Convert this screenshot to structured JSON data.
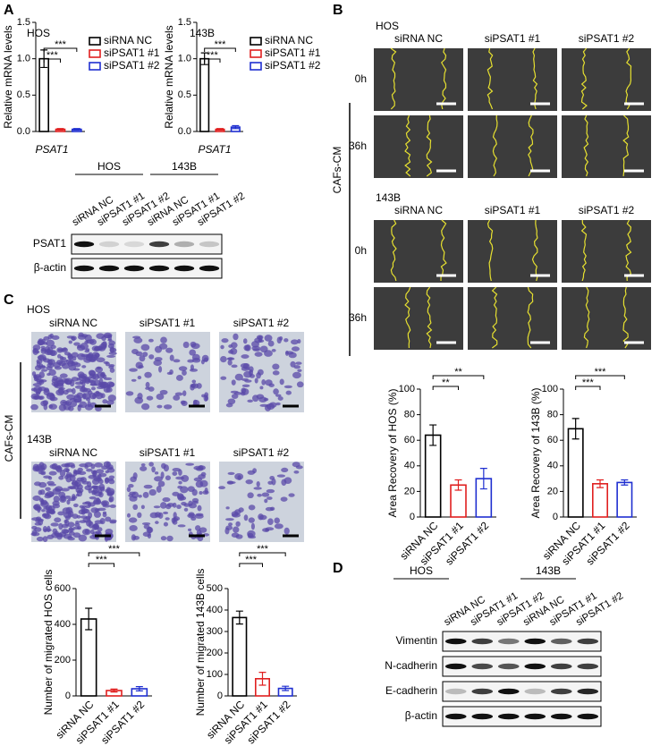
{
  "panels": [
    "A",
    "B",
    "C",
    "D"
  ],
  "chart_data": [
    {
      "type": "bar",
      "title": "HOS",
      "ylabel": "Relative mRNA levels",
      "xlabel": "PSAT1",
      "legend": true,
      "categories": [
        "siRNA NC",
        "siPSAT1 #1",
        "siPSAT1 #2"
      ],
      "values": [
        1.0,
        0.03,
        0.03
      ],
      "errors": [
        0.12,
        0.01,
        0.01
      ],
      "colors": [
        "#000000",
        "#e02020",
        "#1f2fd0"
      ],
      "ylim": [
        0,
        1.5
      ],
      "yticks": [
        {
          "value": 0,
          "label": "0.0"
        },
        {
          "value": 0.5,
          "label": "0.5"
        },
        {
          "value": 1,
          "label": "1.0"
        },
        {
          "value": 1.5,
          "label": "1.5"
        }
      ],
      "annotations": [
        "***",
        "***"
      ]
    },
    {
      "type": "bar",
      "title": "143B",
      "ylabel": "Relative mRNA levels",
      "xlabel": "PSAT1",
      "legend": true,
      "categories": [
        "siRNA NC",
        "siPSAT1 #1",
        "siPSAT1 #2"
      ],
      "values": [
        1.0,
        0.03,
        0.06
      ],
      "errors": [
        0.08,
        0.01,
        0.02
      ],
      "colors": [
        "#000000",
        "#e02020",
        "#1f2fd0"
      ],
      "ylim": [
        0,
        1.5
      ],
      "yticks": [
        {
          "value": 0,
          "label": "0.0"
        },
        {
          "value": 0.5,
          "label": "0.5"
        },
        {
          "value": 1,
          "label": "1.0"
        },
        {
          "value": 1.5,
          "label": "1.5"
        }
      ],
      "annotations": [
        "***",
        "***"
      ]
    },
    {
      "type": "bar",
      "ylabel": "Area Recovery of HOS (%)",
      "categories": [
        "siRNA NC",
        "siPSAT1 #1",
        "siPSAT1 #2"
      ],
      "values": [
        64,
        25,
        30
      ],
      "errors": [
        8,
        4,
        8
      ],
      "colors": [
        "#000000",
        "#e02020",
        "#1f2fd0"
      ],
      "ylim": [
        0,
        100
      ],
      "yticks": [
        0,
        20,
        40,
        60,
        80,
        100
      ],
      "annotations": [
        "**",
        "**"
      ]
    },
    {
      "type": "bar",
      "ylabel": "Area Recovery of 143B (%)",
      "categories": [
        "siRNA NC",
        "siPSAT1 #1",
        "siPSAT1 #2"
      ],
      "values": [
        69,
        26,
        27
      ],
      "errors": [
        8,
        3,
        2
      ],
      "colors": [
        "#000000",
        "#e02020",
        "#1f2fd0"
      ],
      "ylim": [
        0,
        100
      ],
      "yticks": [
        0,
        20,
        40,
        60,
        80,
        100
      ],
      "annotations": [
        "***",
        "***"
      ]
    },
    {
      "type": "bar",
      "ylabel": "Number of migrated HOS cells",
      "categories": [
        "siRNA NC",
        "siPSAT1 #1",
        "siPSAT1 #2"
      ],
      "values": [
        430,
        30,
        40
      ],
      "errors": [
        60,
        8,
        12
      ],
      "colors": [
        "#000000",
        "#e02020",
        "#1f2fd0"
      ],
      "ylim": [
        0,
        600
      ],
      "yticks": [
        0,
        200,
        400,
        600
      ],
      "annotations": [
        "***",
        "***"
      ]
    },
    {
      "type": "bar",
      "ylabel": "Number of migrated 143B cells",
      "categories": [
        "siRNA NC",
        "siPSAT1 #1",
        "siPSAT1 #2"
      ],
      "values": [
        365,
        80,
        35
      ],
      "errors": [
        30,
        30,
        10
      ],
      "colors": [
        "#000000",
        "#e02020",
        "#1f2fd0"
      ],
      "ylim": [
        0,
        500
      ],
      "yticks": [
        0,
        100,
        200,
        300,
        400,
        500
      ],
      "annotations": [
        "***",
        "***"
      ]
    }
  ],
  "blot_a": {
    "groups": [
      "HOS",
      "143B"
    ],
    "lanes": [
      "siRNA NC",
      "siPSAT1 #1",
      "siPSAT1 #2",
      "siRNA NC",
      "siPSAT1 #1",
      "siPSAT1 #2"
    ],
    "rows": [
      "PSAT1",
      "β-actin"
    ]
  },
  "wound": {
    "side_label": "CAFs-CM",
    "blocks": [
      {
        "cell": "HOS",
        "columns": [
          "siRNA NC",
          "siPSAT1 #1",
          "siPSAT1 #2"
        ],
        "times": [
          "0h",
          "36h"
        ]
      },
      {
        "cell": "143B",
        "columns": [
          "siRNA NC",
          "siPSAT1 #1",
          "siPSAT1 #2"
        ],
        "times": [
          "0h",
          "36h"
        ]
      }
    ]
  },
  "transwell": {
    "side_label": "CAFs-CM",
    "blocks": [
      {
        "cell": "HOS",
        "columns": [
          "siRNA NC",
          "siPSAT1 #1",
          "siPSAT1 #2"
        ]
      },
      {
        "cell": "143B",
        "columns": [
          "siRNA NC",
          "siPSAT1 #1",
          "siPSAT1 #2"
        ]
      }
    ]
  },
  "blot_d": {
    "groups": [
      "HOS",
      "143B"
    ],
    "lanes": [
      "siRNA NC",
      "siPSAT1 #1",
      "siPSAT1 #2",
      "siRNA NC",
      "siPSAT1 #1",
      "siPSAT1 #2"
    ],
    "rows": [
      "Vimentin",
      "N-cadherin",
      "E-cadherin",
      "β-actin"
    ]
  }
}
